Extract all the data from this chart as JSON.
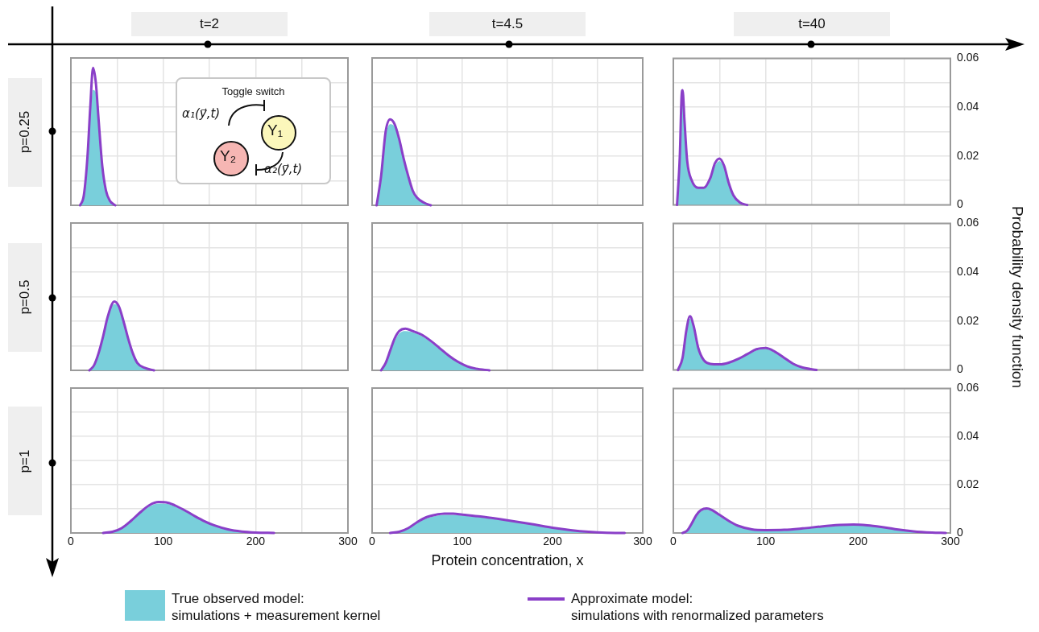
{
  "chart_data": [
    {
      "type": "area",
      "title": "t=2",
      "ylabel": "p=0.25",
      "annotations": [
        "Toggle switch",
        "α₁(y⃗,t)",
        "Y₁",
        "Y₂",
        "α₂(y⃗,t)"
      ],
      "x": [
        10,
        14,
        18,
        21,
        24,
        27,
        30,
        34,
        38,
        42,
        48
      ],
      "xlim": [
        0,
        300
      ],
      "ylim": [
        0,
        0.06
      ],
      "xticks": [
        0,
        {
          "value": 50,
          "label": null
        },
        100,
        {
          "value": 150,
          "label": null
        },
        200,
        {
          "value": 250,
          "label": null
        },
        300
      ],
      "yticks": [
        0,
        {
          "value": 0.01,
          "label": null
        },
        0.02,
        {
          "value": 0.03,
          "label": null
        },
        0.04,
        {
          "value": 0.05,
          "label": null
        },
        0.06
      ],
      "grid": true,
      "marker": "none",
      "tick_labels": false,
      "series": [
        {
          "type": "area",
          "color": "#79cfdb",
          "values": [
            0,
            0.004,
            0.018,
            0.036,
            0.047,
            0.046,
            0.033,
            0.015,
            0.006,
            0.002,
            0
          ]
        },
        {
          "type": "line",
          "color": "#8a3fc8",
          "values": [
            0,
            0.004,
            0.02,
            0.04,
            0.056,
            0.05,
            0.035,
            0.016,
            0.006,
            0.002,
            0
          ]
        }
      ]
    },
    {
      "type": "area",
      "title": "t=4.5",
      "x": [
        5,
        10,
        15,
        20,
        25,
        30,
        35,
        40,
        45,
        50,
        58,
        65
      ],
      "xlim": [
        0,
        300
      ],
      "ylim": [
        0,
        0.06
      ],
      "xticks": [
        0,
        {
          "value": 50,
          "label": null
        },
        100,
        {
          "value": 150,
          "label": null
        },
        200,
        {
          "value": 250,
          "label": null
        },
        300
      ],
      "yticks": [
        0,
        {
          "value": 0.01,
          "label": null
        },
        0.02,
        {
          "value": 0.03,
          "label": null
        },
        0.04,
        {
          "value": 0.05,
          "label": null
        },
        0.06
      ],
      "grid": true,
      "marker": "none",
      "tick_labels": false,
      "series": [
        {
          "type": "area",
          "color": "#79cfdb",
          "values": [
            0,
            0.011,
            0.028,
            0.033,
            0.032,
            0.026,
            0.018,
            0.011,
            0.006,
            0.003,
            0.001,
            0
          ]
        },
        {
          "type": "line",
          "color": "#8a3fc8",
          "values": [
            0,
            0.012,
            0.03,
            0.035,
            0.033,
            0.027,
            0.019,
            0.012,
            0.006,
            0.003,
            0.001,
            0
          ]
        }
      ]
    },
    {
      "type": "area",
      "title": "t=40",
      "x": [
        4,
        7,
        9,
        10,
        12,
        15,
        20,
        27,
        33,
        40,
        45,
        50,
        55,
        60,
        65,
        72,
        80
      ],
      "xlim": [
        0,
        300
      ],
      "ylim": [
        0,
        0.06
      ],
      "xticks": [
        0,
        {
          "value": 50,
          "label": null
        },
        100,
        {
          "value": 150,
          "label": null
        },
        200,
        {
          "value": 250,
          "label": null
        },
        300
      ],
      "yticks": [
        0,
        {
          "value": 0.01,
          "label": null
        },
        0.02,
        {
          "value": 0.03,
          "label": null
        },
        0.04,
        {
          "value": 0.05,
          "label": null
        },
        0.06
      ],
      "grid": true,
      "marker": "none",
      "tick_labels": "y",
      "series": [
        {
          "type": "area",
          "color": "#79cfdb",
          "values": [
            0,
            0.018,
            0.04,
            0.042,
            0.033,
            0.017,
            0.01,
            0.007,
            0.007,
            0.011,
            0.016,
            0.018,
            0.015,
            0.009,
            0.004,
            0.001,
            0
          ]
        },
        {
          "type": "line",
          "color": "#8a3fc8",
          "values": [
            0,
            0.02,
            0.045,
            0.047,
            0.035,
            0.018,
            0.01,
            0.007,
            0.007,
            0.011,
            0.017,
            0.019,
            0.016,
            0.009,
            0.004,
            0.001,
            0
          ]
        }
      ]
    },
    {
      "type": "area",
      "ylabel": "p=0.5",
      "x": [
        20,
        25,
        30,
        35,
        40,
        47,
        52,
        57,
        62,
        67,
        72,
        80,
        90
      ],
      "xlim": [
        0,
        300
      ],
      "ylim": [
        0,
        0.06
      ],
      "xticks": [
        0,
        {
          "value": 50,
          "label": null
        },
        100,
        {
          "value": 150,
          "label": null
        },
        200,
        {
          "value": 250,
          "label": null
        },
        300
      ],
      "yticks": [
        0,
        {
          "value": 0.01,
          "label": null
        },
        0.02,
        {
          "value": 0.03,
          "label": null
        },
        0.04,
        {
          "value": 0.05,
          "label": null
        },
        0.06
      ],
      "grid": true,
      "marker": "none",
      "tick_labels": false,
      "series": [
        {
          "type": "area",
          "color": "#79cfdb",
          "values": [
            0,
            0.002,
            0.007,
            0.014,
            0.022,
            0.027,
            0.026,
            0.02,
            0.013,
            0.007,
            0.003,
            0.001,
            0
          ]
        },
        {
          "type": "line",
          "color": "#8a3fc8",
          "values": [
            0,
            0.002,
            0.007,
            0.014,
            0.022,
            0.028,
            0.026,
            0.02,
            0.013,
            0.007,
            0.003,
            0.001,
            0
          ]
        }
      ]
    },
    {
      "type": "area",
      "x": [
        10,
        15,
        20,
        25,
        30,
        37,
        45,
        55,
        65,
        75,
        85,
        95,
        105,
        115,
        130
      ],
      "xlim": [
        0,
        300
      ],
      "ylim": [
        0,
        0.06
      ],
      "xticks": [
        0,
        {
          "value": 50,
          "label": null
        },
        100,
        {
          "value": 150,
          "label": null
        },
        200,
        {
          "value": 250,
          "label": null
        },
        300
      ],
      "yticks": [
        0,
        {
          "value": 0.01,
          "label": null
        },
        0.02,
        {
          "value": 0.03,
          "label": null
        },
        0.04,
        {
          "value": 0.05,
          "label": null
        },
        0.06
      ],
      "grid": true,
      "marker": "none",
      "tick_labels": false,
      "series": [
        {
          "type": "area",
          "color": "#79cfdb",
          "values": [
            0,
            0.003,
            0.008,
            0.012,
            0.015,
            0.016,
            0.0155,
            0.014,
            0.0115,
            0.0085,
            0.0058,
            0.0035,
            0.0017,
            0.0007,
            0
          ]
        },
        {
          "type": "line",
          "color": "#8a3fc8",
          "values": [
            0,
            0.003,
            0.008,
            0.013,
            0.016,
            0.017,
            0.016,
            0.0145,
            0.012,
            0.009,
            0.006,
            0.0035,
            0.0017,
            0.0007,
            0
          ]
        }
      ]
    },
    {
      "type": "area",
      "ylabel": "Probability density function",
      "x": [
        5,
        10,
        14,
        18,
        22,
        27,
        33,
        40,
        50,
        60,
        70,
        80,
        90,
        100,
        110,
        120,
        130,
        140,
        155
      ],
      "xlim": [
        0,
        300
      ],
      "ylim": [
        0,
        0.06
      ],
      "xticks": [
        0,
        {
          "value": 50,
          "label": null
        },
        100,
        {
          "value": 150,
          "label": null
        },
        200,
        {
          "value": 250,
          "label": null
        },
        300
      ],
      "yticks": [
        0,
        {
          "value": 0.01,
          "label": null
        },
        0.02,
        {
          "value": 0.03,
          "label": null
        },
        0.04,
        {
          "value": 0.05,
          "label": null
        },
        0.06
      ],
      "grid": true,
      "marker": "none",
      "tick_labels": "y",
      "series": [
        {
          "type": "area",
          "color": "#79cfdb",
          "values": [
            0,
            0.005,
            0.015,
            0.021,
            0.017,
            0.009,
            0.004,
            0.0025,
            0.0023,
            0.003,
            0.0045,
            0.0062,
            0.008,
            0.0085,
            0.0072,
            0.005,
            0.0025,
            0.001,
            0
          ]
        },
        {
          "type": "line",
          "color": "#8a3fc8",
          "values": [
            0,
            0.005,
            0.016,
            0.022,
            0.018,
            0.009,
            0.004,
            0.0025,
            0.0023,
            0.003,
            0.0045,
            0.0065,
            0.0085,
            0.009,
            0.0075,
            0.005,
            0.0025,
            0.001,
            0
          ]
        }
      ]
    },
    {
      "type": "area",
      "ylabel": "p=1",
      "x": [
        35,
        45,
        55,
        65,
        75,
        85,
        95,
        105,
        115,
        125,
        135,
        145,
        155,
        170,
        185,
        200,
        220
      ],
      "xlim": [
        0,
        300
      ],
      "ylim": [
        0,
        0.06
      ],
      "xticks": [
        0,
        {
          "value": 50,
          "label": null
        },
        100,
        {
          "value": 150,
          "label": null
        },
        200,
        {
          "value": 250,
          "label": null
        },
        300
      ],
      "yticks": [
        0,
        {
          "value": 0.01,
          "label": null
        },
        0.02,
        {
          "value": 0.03,
          "label": null
        },
        0.04,
        {
          "value": 0.05,
          "label": null
        },
        0.06
      ],
      "grid": true,
      "marker": "none",
      "tick_labels": "x",
      "series": [
        {
          "type": "area",
          "color": "#79cfdb",
          "values": [
            0,
            0.0005,
            0.002,
            0.0048,
            0.008,
            0.011,
            0.0122,
            0.012,
            0.0106,
            0.0087,
            0.0066,
            0.0047,
            0.0032,
            0.0015,
            0.0006,
            0.0002,
            0
          ]
        },
        {
          "type": "line",
          "color": "#8a3fc8",
          "values": [
            0,
            0.0005,
            0.002,
            0.005,
            0.0085,
            0.0115,
            0.0128,
            0.0125,
            0.011,
            0.009,
            0.0068,
            0.0048,
            0.0032,
            0.0015,
            0.0006,
            0.0002,
            0
          ]
        }
      ]
    },
    {
      "type": "area",
      "xlabel": "Protein concentration, x",
      "legend": "bottom",
      "x": [
        20,
        30,
        40,
        50,
        60,
        70,
        80,
        90,
        100,
        120,
        140,
        160,
        180,
        200,
        220,
        240,
        260,
        280
      ],
      "xlim": [
        0,
        300
      ],
      "ylim": [
        0,
        0.06
      ],
      "xticks": [
        0,
        {
          "value": 50,
          "label": null
        },
        100,
        {
          "value": 150,
          "label": null
        },
        200,
        {
          "value": 250,
          "label": null
        },
        300
      ],
      "yticks": [
        0,
        {
          "value": 0.01,
          "label": null
        },
        0.02,
        {
          "value": 0.03,
          "label": null
        },
        0.04,
        {
          "value": 0.05,
          "label": null
        },
        0.06
      ],
      "grid": true,
      "marker": "none",
      "tick_labels": "x",
      "series": [
        {
          "type": "area",
          "name": "True observed model:\nsimulations + measurement kernel",
          "color": "#79cfdb",
          "values": [
            0,
            0.0005,
            0.0018,
            0.0042,
            0.006,
            0.007,
            0.0075,
            0.0075,
            0.0072,
            0.0065,
            0.0055,
            0.0045,
            0.0034,
            0.0021,
            0.0012,
            0.0005,
            0.0001,
            0
          ]
        },
        {
          "type": "line",
          "name": "Approximate model:\nsimulations with renormalized parameters",
          "color": "#8a3fc8",
          "values": [
            0,
            0.0005,
            0.002,
            0.0045,
            0.0065,
            0.0075,
            0.008,
            0.008,
            0.0076,
            0.0068,
            0.0058,
            0.0047,
            0.0035,
            0.0022,
            0.0012,
            0.0005,
            0.0001,
            0
          ]
        }
      ]
    },
    {
      "type": "area",
      "x": [
        10,
        15,
        20,
        25,
        30,
        36,
        42,
        50,
        60,
        70,
        85,
        100,
        120,
        140,
        160,
        180,
        195,
        210,
        225,
        240,
        260,
        280,
        295
      ],
      "xlim": [
        0,
        300
      ],
      "ylim": [
        0,
        0.06
      ],
      "xticks": [
        0,
        {
          "value": 50,
          "label": null
        },
        100,
        {
          "value": 150,
          "label": null
        },
        200,
        {
          "value": 250,
          "label": null
        },
        300
      ],
      "yticks": [
        0,
        {
          "value": 0.01,
          "label": null
        },
        0.02,
        {
          "value": 0.03,
          "label": null
        },
        0.04,
        {
          "value": 0.05,
          "label": null
        },
        0.06
      ],
      "grid": true,
      "marker": "none",
      "series": [
        {
          "type": "area",
          "color": "#79cfdb",
          "values": [
            0,
            0.001,
            0.0038,
            0.007,
            0.009,
            0.0097,
            0.009,
            0.0071,
            0.0048,
            0.0029,
            0.0015,
            0.0012,
            0.0013,
            0.0018,
            0.0025,
            0.0031,
            0.0033,
            0.003,
            0.0024,
            0.0016,
            0.0007,
            0.0002,
            0
          ]
        },
        {
          "type": "line",
          "color": "#8a3fc8",
          "values": [
            0,
            0.001,
            0.004,
            0.0075,
            0.0095,
            0.0102,
            0.0095,
            0.0075,
            0.005,
            0.003,
            0.0015,
            0.0012,
            0.0013,
            0.0019,
            0.0027,
            0.0033,
            0.0035,
            0.0032,
            0.0025,
            0.0016,
            0.0007,
            0.0002,
            0
          ]
        }
      ]
    }
  ]
}
